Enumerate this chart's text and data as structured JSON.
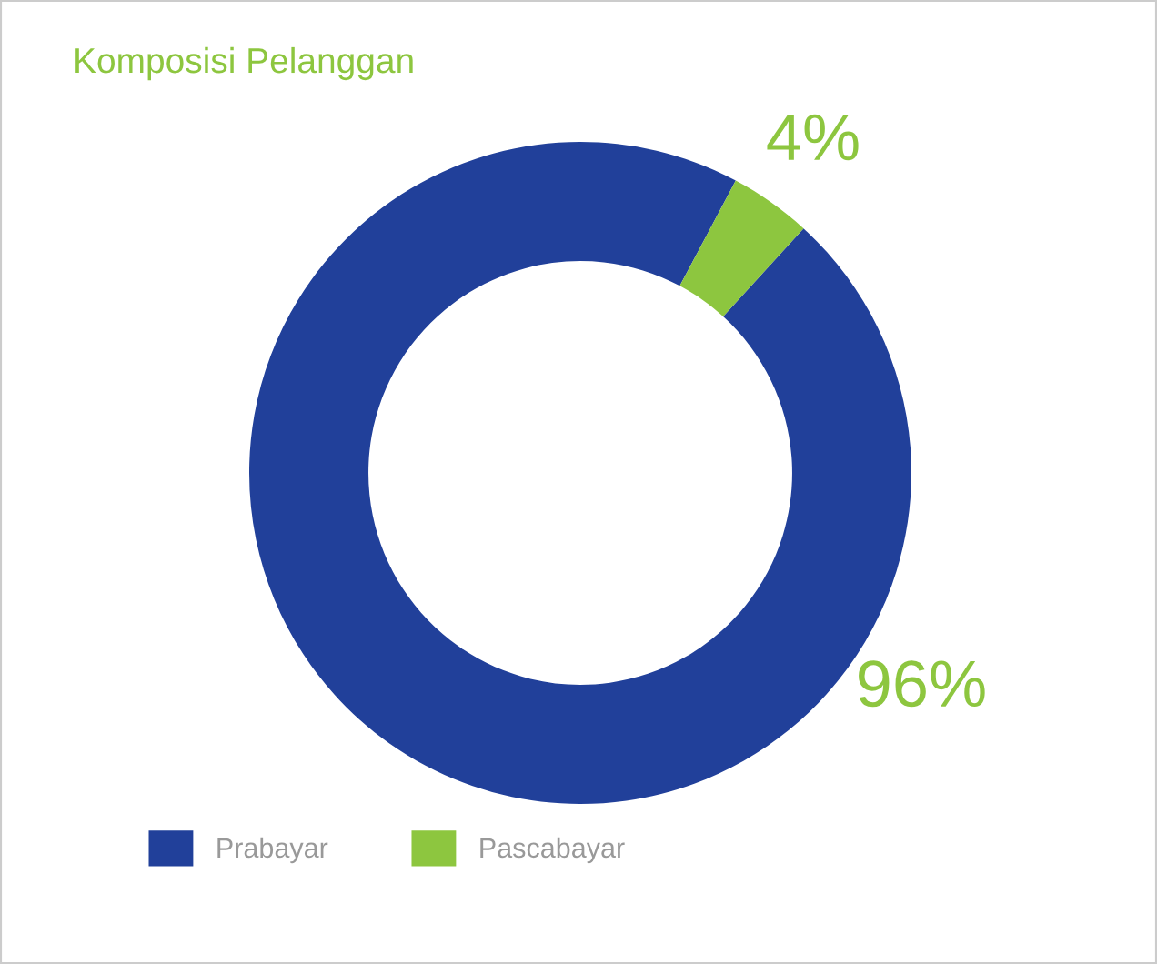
{
  "chart_data": {
    "type": "donut",
    "title": "Komposisi Pelanggan",
    "categories": [
      "Prabayar",
      "Pascabayar"
    ],
    "values": [
      96,
      4
    ],
    "colors": [
      "#21409a",
      "#8dc63f"
    ],
    "value_labels": [
      "96%",
      "4%"
    ],
    "legend": "bottom left"
  }
}
